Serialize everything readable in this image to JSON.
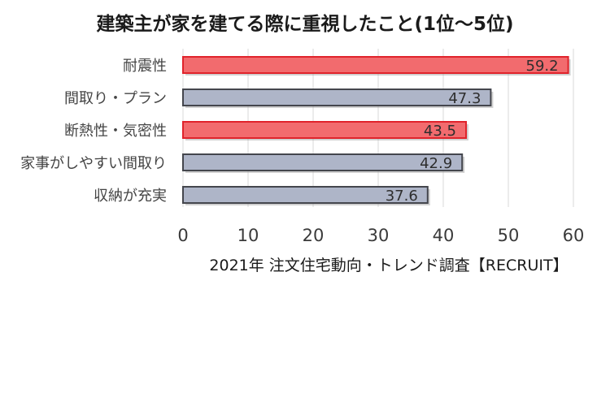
{
  "chart_data": {
    "type": "bar",
    "orientation": "horizontal",
    "title": "建築主が家を建てる際に重視したこと(1位～5位)",
    "xlabel": "2021年 注文住宅動向・トレンド調査【RECRUIT】",
    "ylabel": "",
    "categories": [
      "耐震性",
      "間取り・プラン",
      "断熱性・気密性",
      "家事がしやすい間取り",
      "収納が充実"
    ],
    "values": [
      59.2,
      47.3,
      43.5,
      42.9,
      37.6
    ],
    "value_labels": [
      "59.2",
      "47.3",
      "43.5",
      "42.9",
      "37.6"
    ],
    "bar_colors": [
      "#f26b6e",
      "#aeb5c8",
      "#f26b6e",
      "#aeb5c8",
      "#aeb5c8"
    ],
    "bar_border_colors": [
      "#e0232b",
      "#44464d",
      "#e0232b",
      "#44464d",
      "#44464d"
    ],
    "xlim": [
      0,
      60
    ],
    "xticks": [
      0,
      10,
      20,
      30,
      40,
      50,
      60
    ],
    "grid": true,
    "legend": "none"
  }
}
